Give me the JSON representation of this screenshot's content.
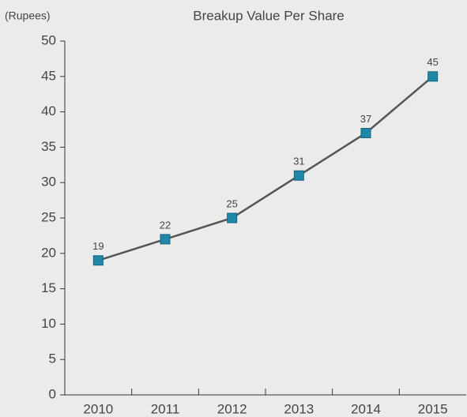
{
  "chart_data": {
    "type": "line",
    "title": "Breakup Value Per Share",
    "y_label": "(Rupees)",
    "categories": [
      "2010",
      "2011",
      "2012",
      "2013",
      "2014",
      "2015"
    ],
    "values": [
      19,
      22,
      25,
      31,
      37,
      45
    ],
    "line_color": "#555555",
    "marker_color": "#1f87a8",
    "ylim": [
      0,
      50
    ],
    "yticks": [
      0,
      5,
      10,
      15,
      20,
      25,
      30,
      35,
      40,
      45,
      50
    ]
  }
}
